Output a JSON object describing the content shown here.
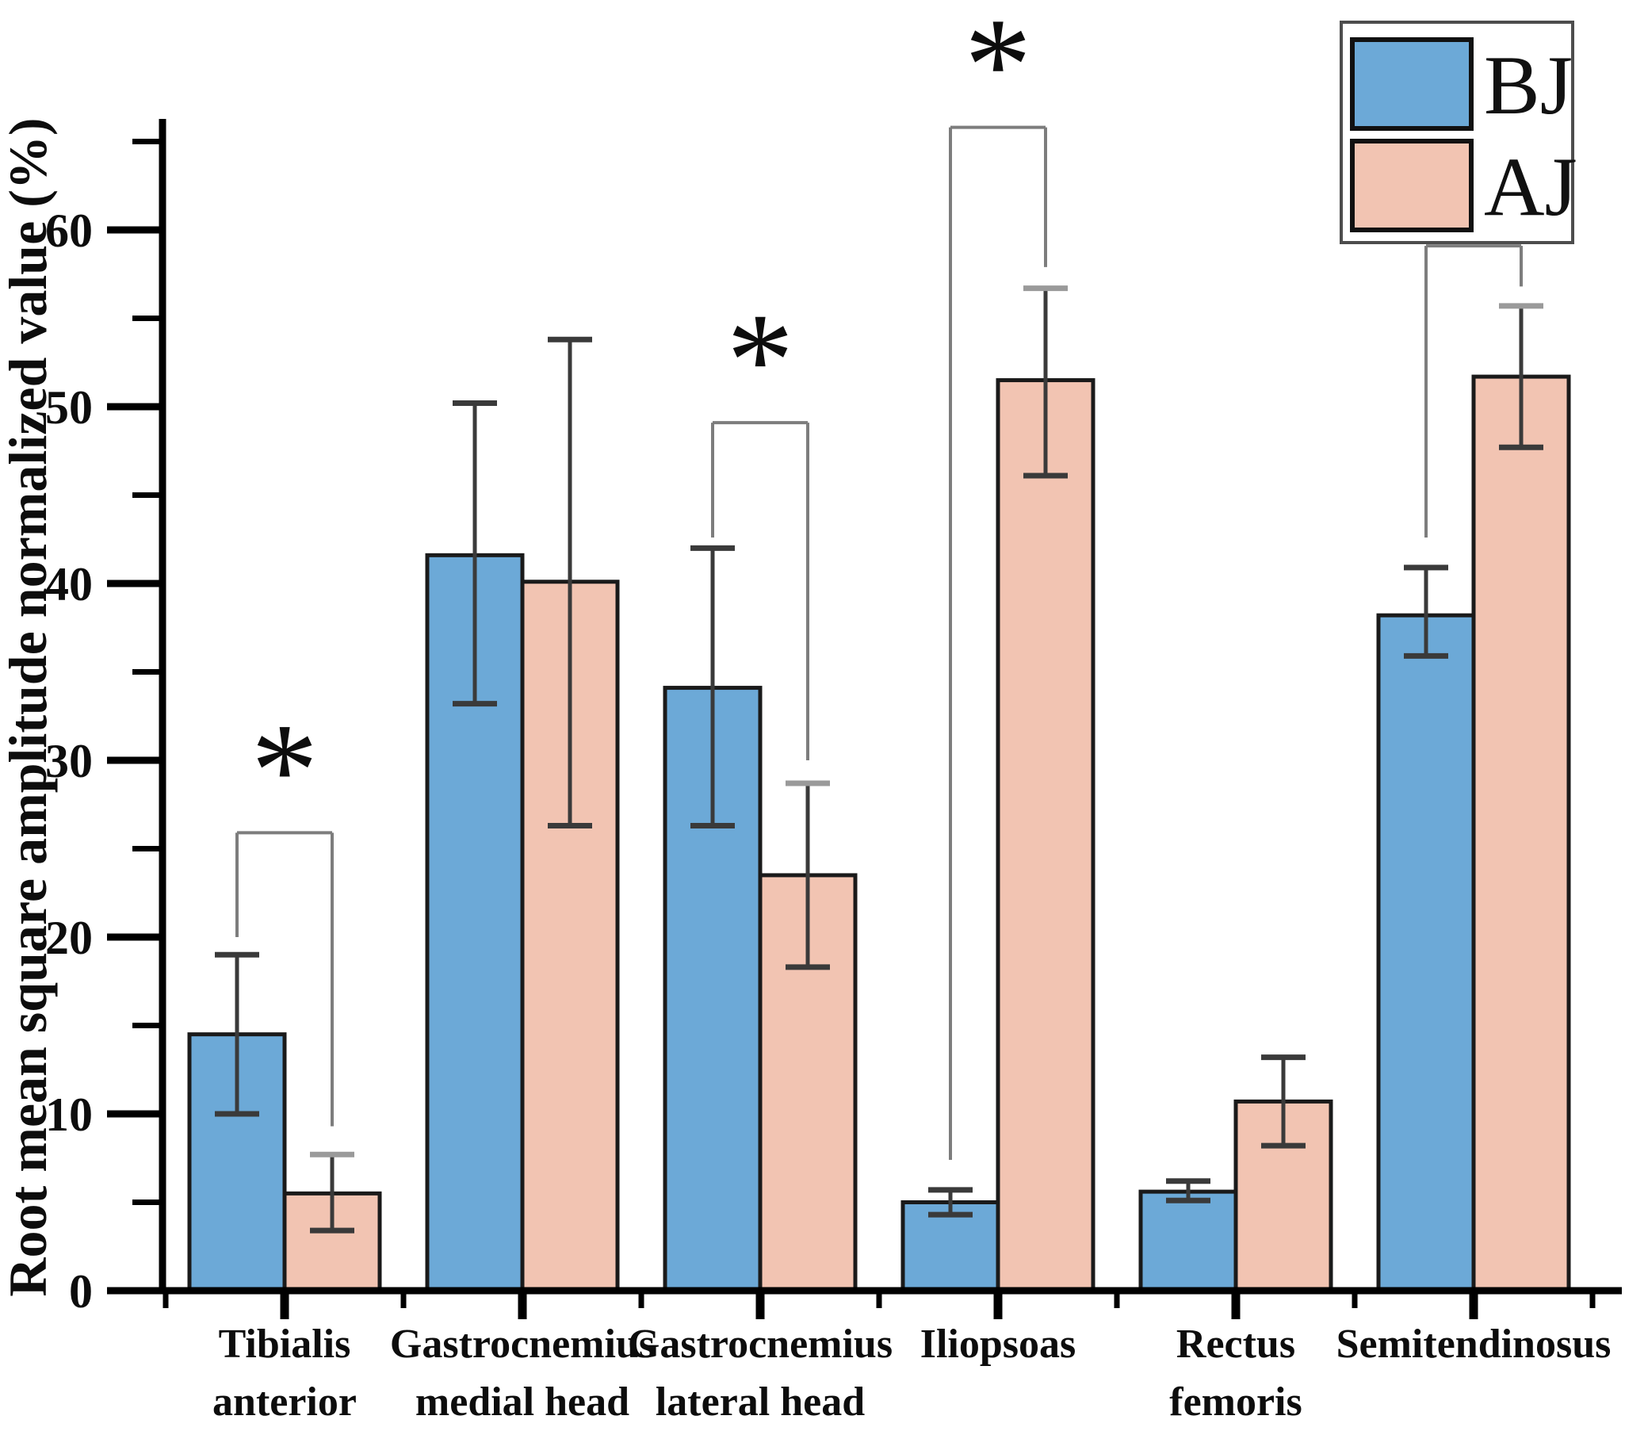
{
  "chart_data": {
    "type": "bar",
    "title": "",
    "ylabel": "Root mean square amplitude normalized value (%)",
    "xlabel": "",
    "ylim": [
      0,
      66
    ],
    "yticks_major": [
      0,
      10,
      20,
      30,
      40,
      50,
      60
    ],
    "yticks_minor": [
      5,
      15,
      25,
      35,
      45,
      55,
      65
    ],
    "grid": "off",
    "legend_position": "top-right",
    "categories": [
      {
        "name": "Tibialis anterior",
        "lines": [
          "Tibialis",
          "anterior"
        ]
      },
      {
        "name": "Gastrocnemius medial head",
        "lines": [
          "Gastrocnemius",
          "medial head"
        ]
      },
      {
        "name": "Gastrocnemius lateral head",
        "lines": [
          "Gastrocnemius",
          "lateral head"
        ]
      },
      {
        "name": "Iliopsoas",
        "lines": [
          "Iliopsoas"
        ]
      },
      {
        "name": "Rectus femoris",
        "lines": [
          "Rectus",
          "femoris"
        ]
      },
      {
        "name": "Semitendinosus",
        "lines": [
          "Semitendinosus"
        ]
      }
    ],
    "series": [
      {
        "name": "BJ",
        "color": "#6CA9D7",
        "values": [
          14.5,
          41.6,
          34.1,
          5.0,
          5.6,
          38.2
        ],
        "err_low": [
          10.0,
          33.2,
          26.3,
          4.3,
          5.1,
          35.9
        ],
        "err_high": [
          19.0,
          50.2,
          42.0,
          5.7,
          6.2,
          40.9
        ]
      },
      {
        "name": "AJ",
        "color": "#F2C4B2",
        "values": [
          5.5,
          40.1,
          23.5,
          51.5,
          10.7,
          51.7
        ],
        "err_low": [
          3.4,
          26.3,
          18.3,
          46.1,
          8.2,
          47.7
        ],
        "err_high": [
          7.7,
          53.8,
          28.7,
          56.7,
          13.2,
          55.7
        ]
      }
    ],
    "significance": [
      {
        "group": 0,
        "label": "*",
        "bar_value": 25.9,
        "left_drop": 20.0,
        "right_drop": 9.3
      },
      {
        "group": 2,
        "label": "*",
        "bar_value": 49.1,
        "left_drop": 42.6,
        "right_drop": 30.0
      },
      {
        "group": 3,
        "label": "*",
        "bar_value": 65.8,
        "left_drop": 7.4,
        "right_drop": 57.9
      },
      {
        "group": 5,
        "label": "*",
        "bar_value": 59.1,
        "left_drop": 42.6,
        "right_drop": 56.8
      }
    ],
    "colors": {
      "axis": "#000000",
      "bar_border": "#1a1a1a",
      "error_bar": "#3a3a3a",
      "error_cap_gray": "#9a9a9a",
      "bracket": "#7d7d7d",
      "text": "#0d0d0d"
    }
  }
}
